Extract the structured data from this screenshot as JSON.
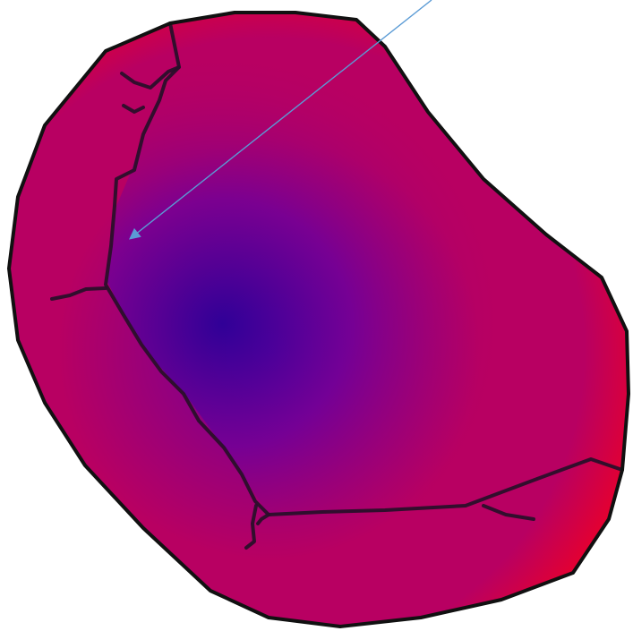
{
  "diagram": {
    "colors": {
      "rim": "#e8002c",
      "mid": "#b80062",
      "core": "#6e009a",
      "deep": "#220099",
      "outline": "#111111",
      "vessel": "#2a0f2a",
      "arrow": "#5b9bd5"
    },
    "shapes": {
      "body": "organ-blob",
      "inner_region": "enclosed-lobe",
      "vessels": "branching-lines",
      "pointer": "arrow"
    }
  }
}
